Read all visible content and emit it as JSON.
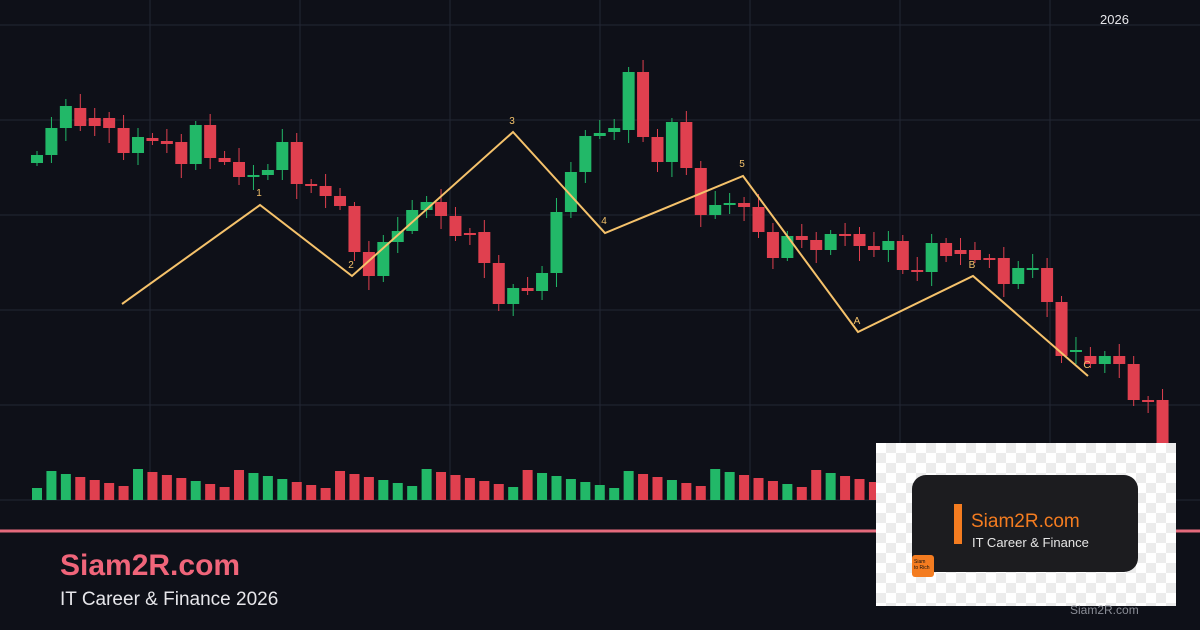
{
  "header": {
    "year": "2026"
  },
  "waves": [
    "1",
    "2",
    "3",
    "4",
    "5",
    "A",
    "B",
    "C"
  ],
  "brand": {
    "title": "Siam2R.com",
    "subtitle": "IT Career & Finance 2026"
  },
  "logo_card": {
    "title": "Siam2R.com",
    "subtitle": "IT Career & Finance",
    "badge": [
      "Siam",
      "to Rich"
    ]
  },
  "watermark": "Siam2R.com"
}
